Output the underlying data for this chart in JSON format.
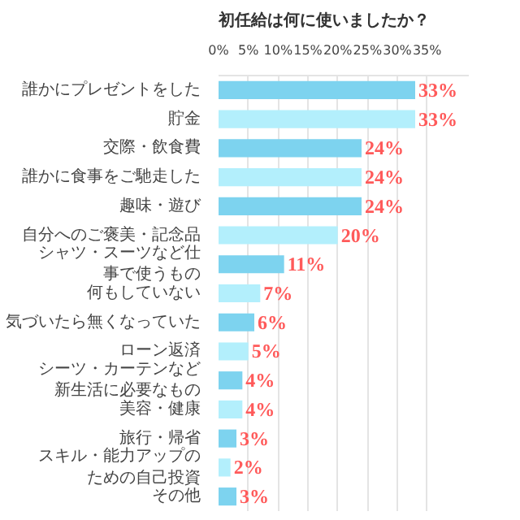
{
  "chart_data": {
    "type": "bar",
    "orientation": "horizontal",
    "title": "初任給は何に使いましたか？",
    "categories": [
      "誰かにプレゼントをした",
      "貯金",
      "交際・飲食費",
      "誰かに食事をご馳走した",
      "趣味・遊び",
      "自分へのご褒美・記念品",
      "シャツ・スーツなど仕事で使うもの",
      "何もしていない",
      "気づいたら無くなっていた",
      "ローン返済",
      "シーツ・カーテンなど新生活に必要なもの",
      "美容・健康",
      "旅行・帰省",
      "スキル・能力アップのための自己投資",
      "その他"
    ],
    "values": [
      33,
      33,
      24,
      24,
      24,
      20,
      11,
      7,
      6,
      5,
      4,
      4,
      3,
      2,
      3
    ],
    "colors": [
      "#7dd3ef",
      "#b3effc",
      "#7dd3ef",
      "#b3effc",
      "#7dd3ef",
      "#b3effc",
      "#7dd3ef",
      "#b3effc",
      "#7dd3ef",
      "#b3effc",
      "#7dd3ef",
      "#b3effc",
      "#7dd3ef",
      "#b3effc",
      "#7dd3ef"
    ],
    "value_labels": [
      "33%",
      "33%",
      "24%",
      "24%",
      "24%",
      "20%",
      "11%",
      "7%",
      "6%",
      "5%",
      "4%",
      "4%",
      "3%",
      "2%",
      "3%"
    ],
    "xlim": [
      0,
      42
    ],
    "xticks": [
      {
        "value": 0,
        "label": "0%"
      },
      {
        "value": 5,
        "label": "5%"
      },
      {
        "value": 10,
        "label": "10%"
      },
      {
        "value": 15,
        "label": "15%"
      },
      {
        "value": 20,
        "label": "20%"
      },
      {
        "value": 25,
        "label": "25%"
      },
      {
        "value": 30,
        "label": "30%"
      },
      {
        "value": 35,
        "label": "35%"
      }
    ],
    "grid": "x"
  }
}
